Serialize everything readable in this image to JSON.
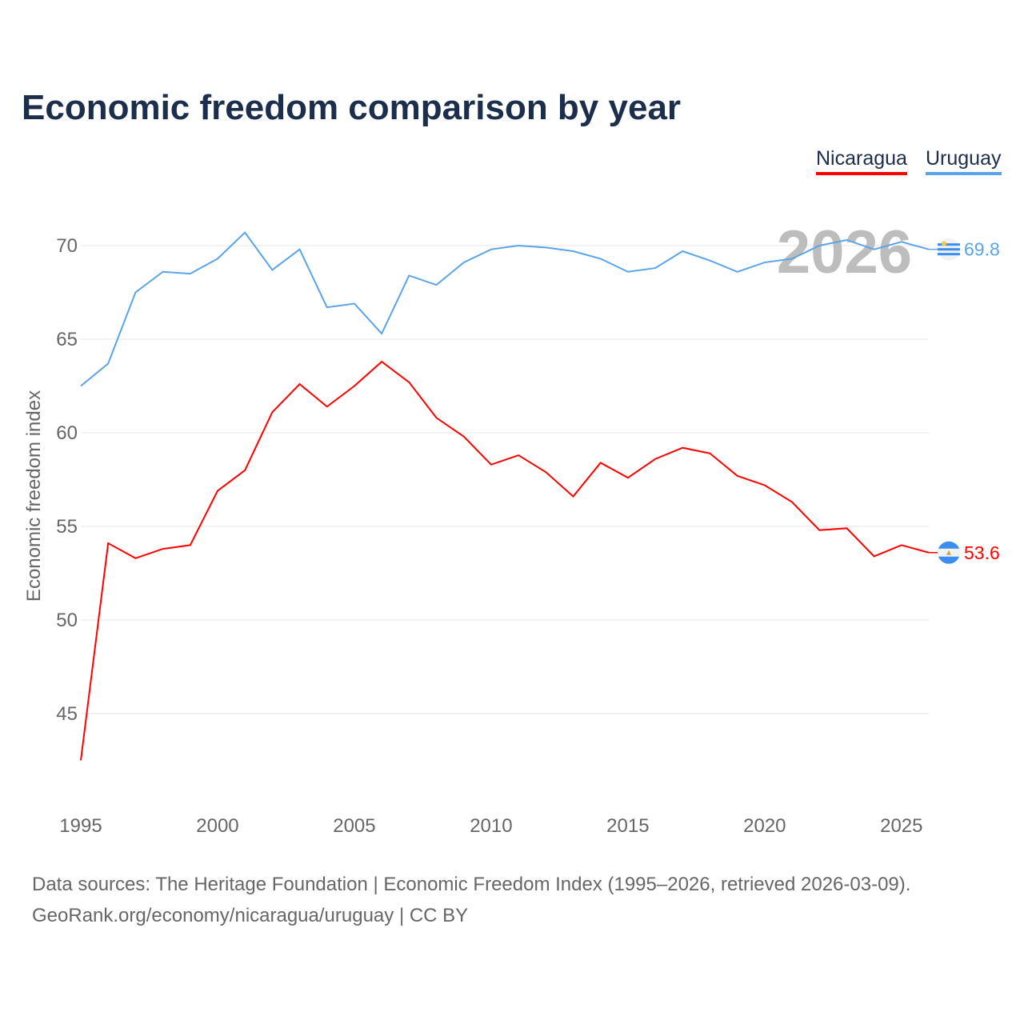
{
  "title": "Economic freedom comparison by year",
  "footer": {
    "line1": "Data sources: The Heritage Foundation | Economic Freedom Index (1995–2026, retrieved 2026-03-09).",
    "line2": "GeoRank.org/economy/nicaragua/uruguay | CC BY"
  },
  "chart_data": {
    "type": "line",
    "title": "Economic freedom comparison by year",
    "xlabel": "",
    "ylabel": "Economic freedom index",
    "year_label": "2026",
    "x": [
      1995,
      1996,
      1997,
      1998,
      1999,
      2000,
      2001,
      2002,
      2003,
      2004,
      2005,
      2006,
      2007,
      2008,
      2009,
      2010,
      2011,
      2012,
      2013,
      2014,
      2015,
      2016,
      2017,
      2018,
      2019,
      2020,
      2021,
      2022,
      2023,
      2024,
      2025,
      2026
    ],
    "xlim": [
      1995,
      2026
    ],
    "ylim": [
      42.5,
      72
    ],
    "xticks": [
      "1995",
      "2000",
      "2005",
      "2010",
      "2015",
      "2020",
      "2025"
    ],
    "yticks": [
      "45",
      "50",
      "55",
      "60",
      "65",
      "70"
    ],
    "grid": true,
    "legend_position": "top-right",
    "series": [
      {
        "name": "Nicaragua",
        "color": "#ff0000",
        "end_label": "53.6",
        "values": [
          42.5,
          54.1,
          53.3,
          53.8,
          54.0,
          56.9,
          58.0,
          61.1,
          62.6,
          61.4,
          62.5,
          63.8,
          62.7,
          60.8,
          59.8,
          58.3,
          58.8,
          57.9,
          56.6,
          58.4,
          57.6,
          58.6,
          59.2,
          58.9,
          57.7,
          57.2,
          56.3,
          54.8,
          54.9,
          53.4,
          54.0,
          53.6
        ]
      },
      {
        "name": "Uruguay",
        "color": "#5ba4e8",
        "end_label": "69.8",
        "values": [
          62.5,
          63.7,
          67.5,
          68.6,
          68.5,
          69.3,
          70.7,
          68.7,
          69.8,
          66.7,
          66.9,
          65.3,
          68.4,
          67.9,
          69.1,
          69.8,
          70.0,
          69.9,
          69.7,
          69.3,
          68.6,
          68.8,
          69.7,
          69.2,
          68.6,
          69.1,
          69.3,
          70.0,
          70.3,
          69.8,
          70.2,
          69.8
        ]
      }
    ]
  }
}
